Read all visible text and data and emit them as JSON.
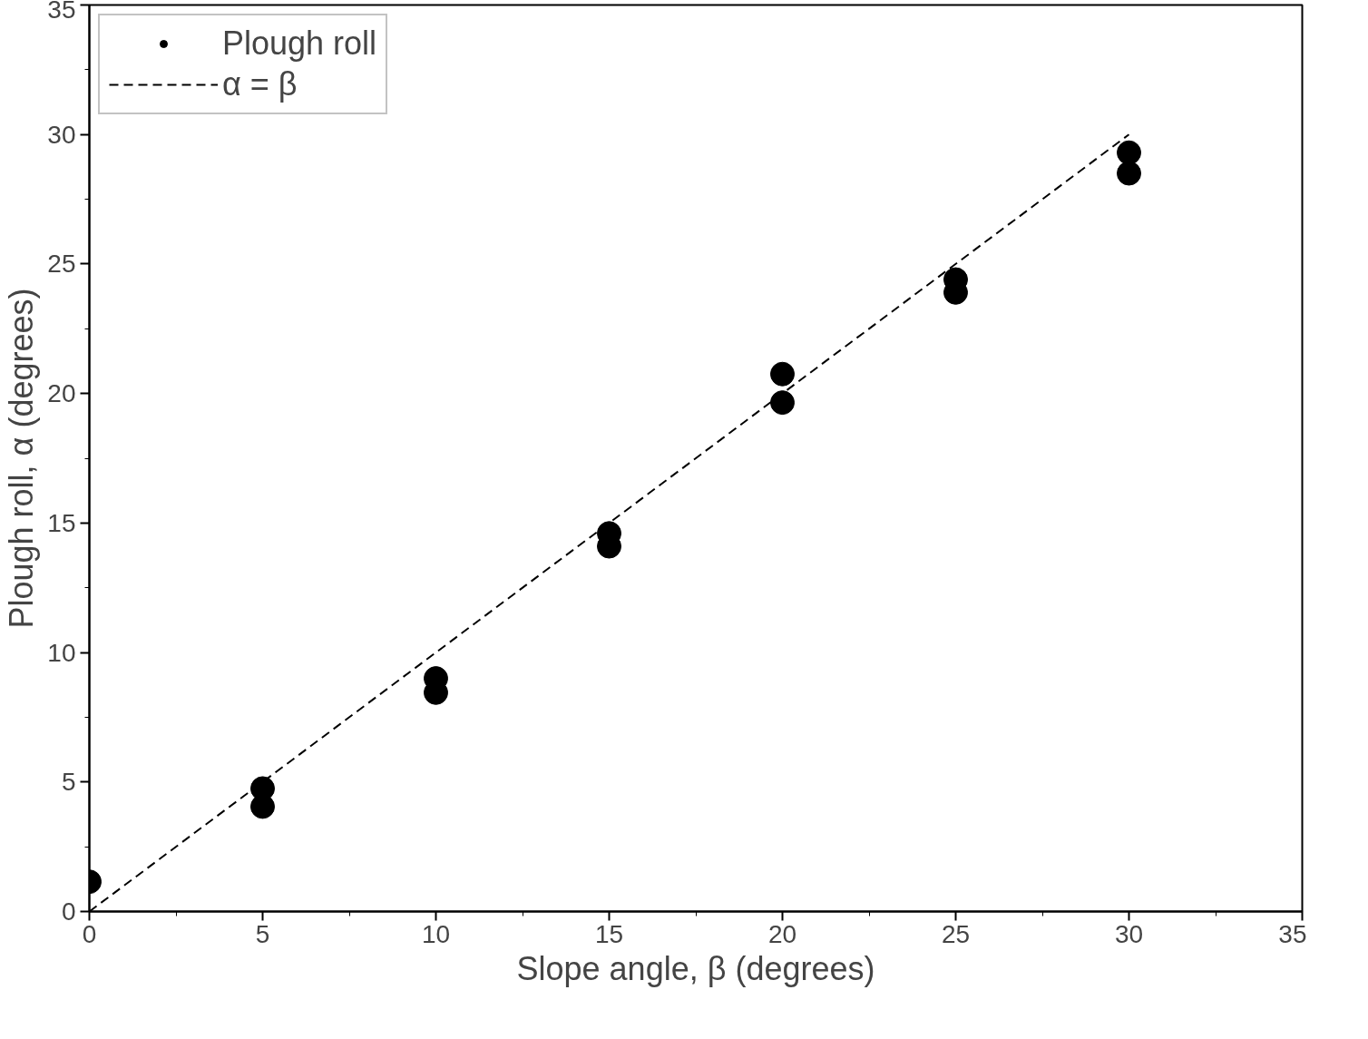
{
  "chart_data": {
    "type": "scatter",
    "xlabel": "Slope angle, β (degrees)",
    "ylabel": "Plough roll, α (degrees)",
    "xlim": [
      0,
      35
    ],
    "ylim": [
      0,
      35
    ],
    "xticks": [
      0,
      5,
      10,
      15,
      20,
      25,
      30,
      35
    ],
    "yticks": [
      0,
      5,
      10,
      15,
      20,
      25,
      30,
      35
    ],
    "grid": false,
    "legend": "top left",
    "marker": "circle",
    "series": [
      {
        "name": "Plough roll",
        "color": "#000000",
        "x": [
          0,
          5,
          5,
          10,
          10,
          15,
          15,
          20,
          20,
          25,
          25,
          30,
          30
        ],
        "values": [
          1.15,
          4.75,
          4.05,
          9.0,
          8.45,
          14.6,
          14.1,
          20.75,
          19.65,
          24.4,
          23.9,
          29.3,
          28.5
        ]
      },
      {
        "name": "α = β",
        "type": "line",
        "color": "#000000",
        "line_style": "dashed",
        "marker": "none",
        "x": [
          0,
          30
        ],
        "values": [
          0,
          30
        ]
      }
    ]
  }
}
